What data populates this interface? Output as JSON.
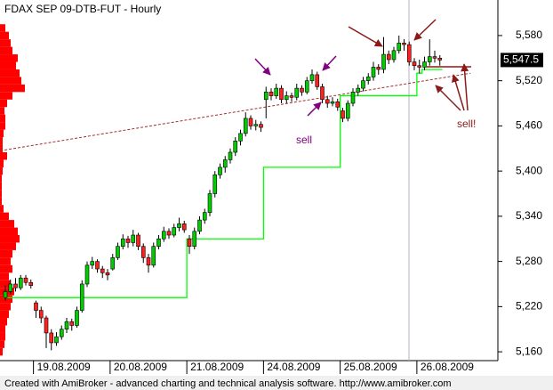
{
  "chart_data": {
    "type": "candlestick",
    "title": "FDAX SEP 09-DTB-FUT - Hourly",
    "footer": "Created with AmiBroker - advanced charting and technical analysis software. http://www.amibroker.com",
    "categories": [
      null,
      null,
      null,
      null,
      null,
      null,
      "19.08.2009",
      null,
      null,
      null,
      null,
      null,
      null,
      null,
      null,
      null,
      null,
      null,
      null,
      null,
      null,
      "20.08.2009",
      null,
      null,
      null,
      null,
      null,
      null,
      null,
      null,
      null,
      null,
      null,
      null,
      null,
      null,
      "21.08.2009",
      null,
      null,
      null,
      null,
      null,
      null,
      null,
      null,
      null,
      null,
      null,
      null,
      null,
      null,
      "24.08.2009",
      null,
      null,
      null,
      null,
      null,
      null,
      null,
      null,
      null,
      null,
      null,
      null,
      null,
      null,
      "25.08.2009",
      null,
      null,
      null,
      null,
      null,
      null,
      null,
      null,
      null,
      null,
      null,
      null,
      null,
      null,
      "26.08.2009",
      null,
      null,
      null,
      null
    ],
    "open": [
      5232,
      5240,
      5250,
      5245,
      5258,
      5252,
      5225,
      5215,
      5205,
      5185,
      5172,
      5180,
      5190,
      5200,
      5195,
      5215,
      5250,
      5275,
      5280,
      5270,
      5265,
      5270,
      5285,
      5300,
      5310,
      5305,
      5315,
      5300,
      5285,
      5275,
      5300,
      5310,
      5320,
      5315,
      5325,
      5330,
      5310,
      5300,
      5320,
      5335,
      5345,
      5370,
      5395,
      5405,
      5415,
      5425,
      5440,
      5450,
      5470,
      5460,
      5462,
      5495,
      5505,
      5500,
      5510,
      5495,
      5500,
      5498,
      5510,
      5505,
      5520,
      5528,
      5512,
      5495,
      5490,
      5492,
      5480,
      5470,
      5490,
      5505,
      5510,
      5520,
      5525,
      5538,
      5535,
      5555,
      5548,
      5560,
      5570,
      5568,
      5545,
      5540,
      5538,
      5545,
      5552,
      5550
    ],
    "high": [
      5248,
      5256,
      5258,
      5262,
      5262,
      5256,
      5228,
      5220,
      5208,
      5190,
      5186,
      5195,
      5205,
      5204,
      5220,
      5255,
      5280,
      5286,
      5283,
      5274,
      5270,
      5290,
      5305,
      5316,
      5314,
      5322,
      5318,
      5304,
      5290,
      5305,
      5315,
      5326,
      5324,
      5330,
      5338,
      5334,
      5315,
      5325,
      5340,
      5350,
      5375,
      5400,
      5410,
      5420,
      5430,
      5445,
      5455,
      5478,
      5474,
      5468,
      5466,
      5512,
      5510,
      5516,
      5514,
      5506,
      5504,
      5516,
      5514,
      5525,
      5535,
      5532,
      5516,
      5500,
      5498,
      5496,
      5484,
      5494,
      5510,
      5515,
      5525,
      5530,
      5545,
      5542,
      5578,
      5560,
      5565,
      5580,
      5575,
      5572,
      5550,
      5548,
      5552,
      5575,
      5560,
      5554
    ],
    "low": [
      5228,
      5236,
      5240,
      5242,
      5248,
      5244,
      5205,
      5198,
      5165,
      5162,
      5168,
      5176,
      5185,
      5188,
      5192,
      5212,
      5246,
      5270,
      5265,
      5258,
      5255,
      5268,
      5282,
      5296,
      5298,
      5300,
      5295,
      5278,
      5265,
      5272,
      5296,
      5306,
      5310,
      5312,
      5320,
      5318,
      5290,
      5296,
      5316,
      5330,
      5340,
      5365,
      5390,
      5398,
      5410,
      5420,
      5434,
      5446,
      5455,
      5454,
      5452,
      5470,
      5494,
      5496,
      5490,
      5490,
      5492,
      5494,
      5500,
      5502,
      5516,
      5508,
      5490,
      5484,
      5486,
      5480,
      5465,
      5466,
      5486,
      5500,
      5506,
      5515,
      5520,
      5528,
      5530,
      5542,
      5544,
      5556,
      5560,
      5540,
      5534,
      5530,
      5534,
      5540,
      5544,
      5540
    ],
    "close": [
      5240,
      5250,
      5245,
      5258,
      5252,
      5248,
      5215,
      5205,
      5185,
      5172,
      5180,
      5190,
      5200,
      5195,
      5215,
      5250,
      5275,
      5280,
      5270,
      5265,
      5262,
      5285,
      5300,
      5310,
      5305,
      5315,
      5300,
      5285,
      5275,
      5300,
      5310,
      5320,
      5315,
      5325,
      5330,
      5322,
      5300,
      5320,
      5335,
      5345,
      5370,
      5395,
      5405,
      5415,
      5425,
      5440,
      5450,
      5470,
      5460,
      5462,
      5458,
      5505,
      5500,
      5510,
      5495,
      5500,
      5498,
      5510,
      5505,
      5520,
      5528,
      5512,
      5495,
      5490,
      5492,
      5485,
      5470,
      5490,
      5505,
      5510,
      5520,
      5525,
      5538,
      5535,
      5555,
      5548,
      5560,
      5570,
      5568,
      5545,
      5540,
      5538,
      5545,
      5552,
      5550,
      5547.5
    ],
    "stop": {
      "color": "#00ff00",
      "values": [
        5232,
        5232,
        5232,
        5232,
        5232,
        5232,
        5232,
        5232,
        5232,
        5232,
        5232,
        5232,
        5232,
        5232,
        5232,
        5232,
        5232,
        5232,
        5232,
        5232,
        5232,
        5232,
        5232,
        5232,
        5232,
        5232,
        5232,
        5232,
        5232,
        5232,
        5232,
        5232,
        5232,
        5232,
        5232,
        5232,
        5310,
        5310,
        5310,
        5310,
        5310,
        5310,
        5310,
        5310,
        5310,
        5310,
        5310,
        5310,
        5310,
        5310,
        5310,
        5405,
        5405,
        5405,
        5405,
        5405,
        5405,
        5405,
        5405,
        5405,
        5405,
        5405,
        5405,
        5405,
        5405,
        5405,
        5500,
        5500,
        5500,
        5500,
        5500,
        5500,
        5500,
        5500,
        5500,
        5500,
        5500,
        5500,
        5500,
        5500,
        5500,
        5530,
        5535,
        5535,
        5535,
        5535
      ]
    },
    "trendline": {
      "color": "#a52a2a",
      "x": [
        -1,
        91
      ],
      "values": [
        5427,
        5530
      ]
    },
    "last_price": {
      "value": 5547.5,
      "label": "5,547.5"
    },
    "volume_profile": {
      "color": "#ff0000",
      "prices": [
        5160,
        5170,
        5180,
        5190,
        5200,
        5210,
        5220,
        5230,
        5240,
        5250,
        5260,
        5270,
        5280,
        5290,
        5300,
        5310,
        5320,
        5330,
        5340,
        5350,
        5360,
        5370,
        5380,
        5390,
        5400,
        5410,
        5420,
        5430,
        5440,
        5450,
        5460,
        5470,
        5480,
        5490,
        5500,
        5510,
        5520,
        5530,
        5540,
        5550,
        5560,
        5570,
        5580,
        5590
      ],
      "values": [
        3,
        5,
        6,
        6,
        8,
        10,
        12,
        14,
        16,
        12,
        10,
        14,
        12,
        14,
        18,
        22,
        20,
        16,
        10,
        4,
        2,
        2,
        2,
        2,
        3,
        4,
        8,
        3,
        3,
        4,
        6,
        6,
        5,
        8,
        14,
        28,
        24,
        22,
        18,
        20,
        14,
        12,
        10,
        6
      ]
    },
    "annotations": [
      "sell",
      "sell!"
    ],
    "ylim": [
      5140,
      5600
    ],
    "yticks": [
      {
        "value": 5160,
        "label": "5,160"
      },
      {
        "value": 5220,
        "label": "5,220"
      },
      {
        "value": 5280,
        "label": "5,280"
      },
      {
        "value": 5340,
        "label": "5,340"
      },
      {
        "value": 5400,
        "label": "5,400"
      },
      {
        "value": 5460,
        "label": "5,460"
      },
      {
        "value": 5520,
        "label": "5,520"
      },
      {
        "value": 5580,
        "label": "5,580"
      }
    ]
  }
}
